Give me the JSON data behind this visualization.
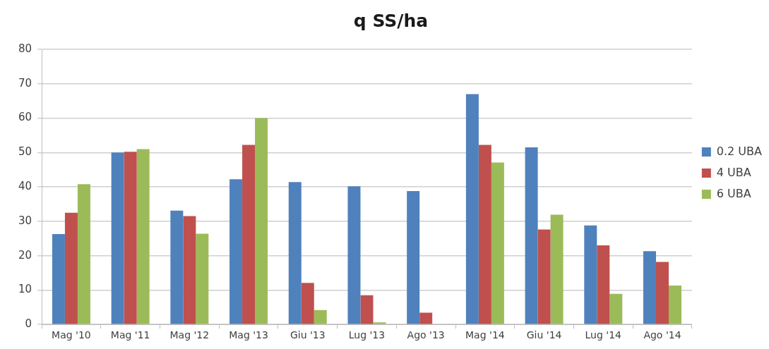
{
  "chart_data": {
    "type": "bar",
    "title": "q SS/ha",
    "categories": [
      "Mag '10",
      "Mag '11",
      "Mag '12",
      "Mag '13",
      "Giu '13",
      "Lug '13",
      "Ago '13",
      "Mag '14",
      "Giu '14",
      "Lug '14",
      "Ago '14"
    ],
    "series": [
      {
        "name": "0.2 UBA",
        "color": "#4f81bd",
        "values": [
          26.3,
          50.0,
          33.1,
          42.2,
          41.4,
          40.2,
          38.8,
          67.0,
          51.5,
          28.8,
          21.3
        ]
      },
      {
        "name": "4 UBA",
        "color": "#c0504d",
        "values": [
          32.5,
          50.2,
          31.5,
          52.2,
          12.1,
          8.5,
          3.4,
          52.2,
          27.6,
          23.0,
          18.2
        ]
      },
      {
        "name": "6 UBA",
        "color": "#9bbb59",
        "values": [
          40.8,
          51.0,
          26.4,
          60.0,
          4.2,
          0.6,
          null,
          47.1,
          31.9,
          8.9,
          11.3
        ]
      }
    ],
    "ylim": [
      0,
      80
    ],
    "yticks": [
      0,
      10,
      20,
      30,
      40,
      50,
      60,
      70,
      80
    ],
    "grid": "y",
    "legend": "right"
  }
}
